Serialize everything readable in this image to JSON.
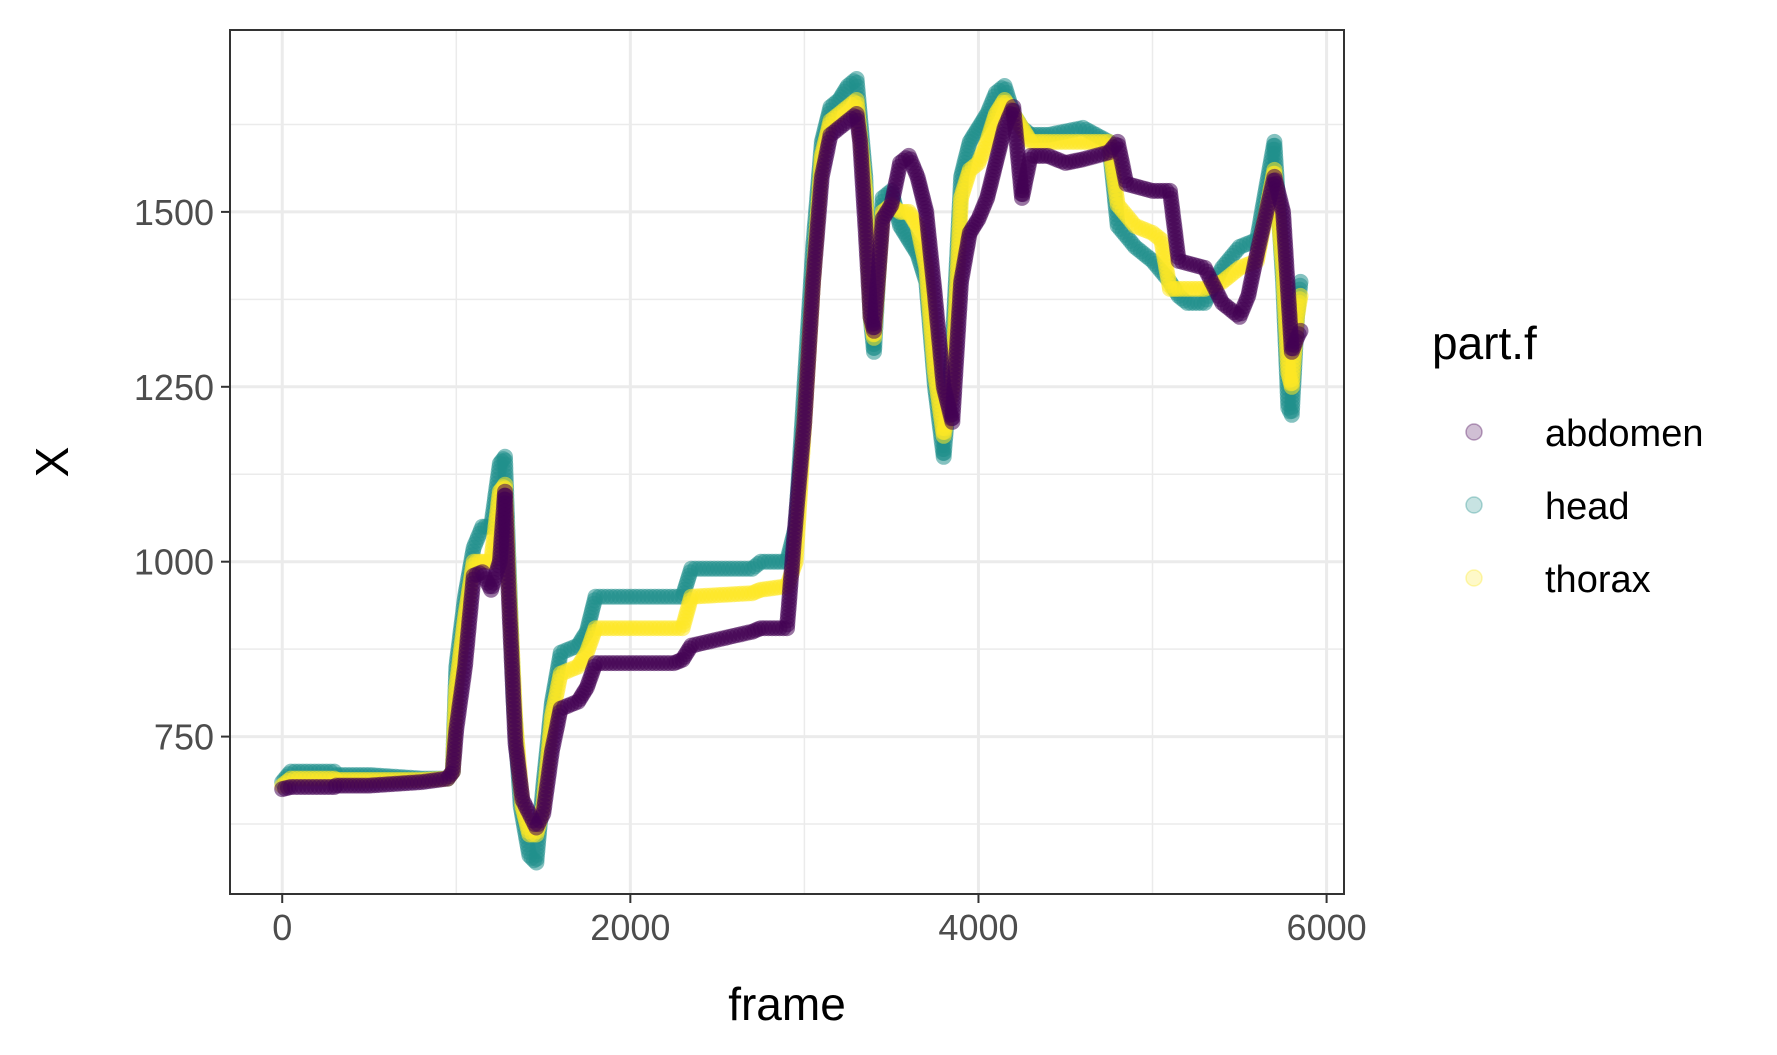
{
  "chart_data": {
    "type": "scatter",
    "xlabel": "frame",
    "ylabel": "X",
    "xlim": [
      -300,
      6100
    ],
    "ylim": [
      525,
      1760
    ],
    "x_ticks": [
      0,
      2000,
      4000,
      6000
    ],
    "x_tick_labels": [
      "0",
      "2000",
      "4000",
      "6000"
    ],
    "y_ticks": [
      750,
      1000,
      1250,
      1500
    ],
    "y_tick_labels": [
      "750",
      "1000",
      "1250",
      "1500"
    ],
    "grid": true,
    "legend": {
      "title": "part.f",
      "position": "right",
      "entries": [
        "abdomen",
        "head",
        "thorax"
      ]
    },
    "series": [
      {
        "name": "head",
        "color": "#21908C",
        "points": [
          [
            0,
            685
          ],
          [
            50,
            700
          ],
          [
            300,
            700
          ],
          [
            310,
            695
          ],
          [
            500,
            695
          ],
          [
            800,
            690
          ],
          [
            950,
            690
          ],
          [
            980,
            700
          ],
          [
            1000,
            850
          ],
          [
            1050,
            950
          ],
          [
            1100,
            1020
          ],
          [
            1150,
            1050
          ],
          [
            1200,
            1050
          ],
          [
            1250,
            1140
          ],
          [
            1280,
            1150
          ],
          [
            1300,
            1000
          ],
          [
            1330,
            800
          ],
          [
            1370,
            650
          ],
          [
            1420,
            580
          ],
          [
            1460,
            570
          ],
          [
            1500,
            680
          ],
          [
            1550,
            800
          ],
          [
            1600,
            870
          ],
          [
            1700,
            880
          ],
          [
            1750,
            900
          ],
          [
            1800,
            950
          ],
          [
            2300,
            950
          ],
          [
            2350,
            990
          ],
          [
            2700,
            990
          ],
          [
            2750,
            1000
          ],
          [
            2900,
            1000
          ],
          [
            2950,
            1050
          ],
          [
            3000,
            1250
          ],
          [
            3050,
            1450
          ],
          [
            3100,
            1600
          ],
          [
            3150,
            1650
          ],
          [
            3200,
            1660
          ],
          [
            3250,
            1680
          ],
          [
            3300,
            1690
          ],
          [
            3350,
            1550
          ],
          [
            3380,
            1350
          ],
          [
            3400,
            1300
          ],
          [
            3450,
            1520
          ],
          [
            3500,
            1530
          ],
          [
            3550,
            1480
          ],
          [
            3600,
            1460
          ],
          [
            3650,
            1440
          ],
          [
            3700,
            1400
          ],
          [
            3750,
            1250
          ],
          [
            3800,
            1150
          ],
          [
            3850,
            1300
          ],
          [
            3900,
            1550
          ],
          [
            3950,
            1600
          ],
          [
            4000,
            1620
          ],
          [
            4050,
            1640
          ],
          [
            4100,
            1670
          ],
          [
            4150,
            1680
          ],
          [
            4200,
            1640
          ],
          [
            4250,
            1620
          ],
          [
            4300,
            1610
          ],
          [
            4400,
            1610
          ],
          [
            4600,
            1620
          ],
          [
            4750,
            1600
          ],
          [
            4800,
            1480
          ],
          [
            4900,
            1450
          ],
          [
            5000,
            1430
          ],
          [
            5100,
            1400
          ],
          [
            5150,
            1380
          ],
          [
            5200,
            1370
          ],
          [
            5300,
            1370
          ],
          [
            5400,
            1420
          ],
          [
            5500,
            1450
          ],
          [
            5600,
            1460
          ],
          [
            5700,
            1600
          ],
          [
            5750,
            1400
          ],
          [
            5780,
            1220
          ],
          [
            5800,
            1210
          ],
          [
            5830,
            1350
          ],
          [
            5850,
            1400
          ]
        ]
      },
      {
        "name": "thorax",
        "color": "#FDE725",
        "points": [
          [
            0,
            680
          ],
          [
            50,
            690
          ],
          [
            300,
            690
          ],
          [
            310,
            688
          ],
          [
            500,
            688
          ],
          [
            800,
            688
          ],
          [
            950,
            690
          ],
          [
            980,
            700
          ],
          [
            1000,
            820
          ],
          [
            1050,
            920
          ],
          [
            1100,
            1000
          ],
          [
            1150,
            1000
          ],
          [
            1200,
            1000
          ],
          [
            1250,
            1100
          ],
          [
            1280,
            1110
          ],
          [
            1300,
            980
          ],
          [
            1340,
            770
          ],
          [
            1380,
            650
          ],
          [
            1420,
            610
          ],
          [
            1460,
            610
          ],
          [
            1500,
            650
          ],
          [
            1550,
            780
          ],
          [
            1600,
            840
          ],
          [
            1700,
            850
          ],
          [
            1750,
            870
          ],
          [
            1800,
            905
          ],
          [
            2300,
            905
          ],
          [
            2350,
            950
          ],
          [
            2700,
            955
          ],
          [
            2750,
            960
          ],
          [
            2900,
            965
          ],
          [
            2950,
            1000
          ],
          [
            3000,
            1200
          ],
          [
            3050,
            1400
          ],
          [
            3100,
            1580
          ],
          [
            3150,
            1630
          ],
          [
            3200,
            1640
          ],
          [
            3250,
            1650
          ],
          [
            3300,
            1660
          ],
          [
            3350,
            1530
          ],
          [
            3380,
            1350
          ],
          [
            3400,
            1320
          ],
          [
            3450,
            1500
          ],
          [
            3500,
            1510
          ],
          [
            3550,
            1500
          ],
          [
            3600,
            1500
          ],
          [
            3650,
            1480
          ],
          [
            3700,
            1420
          ],
          [
            3750,
            1270
          ],
          [
            3800,
            1180
          ],
          [
            3850,
            1250
          ],
          [
            3900,
            1520
          ],
          [
            3950,
            1560
          ],
          [
            4000,
            1570
          ],
          [
            4050,
            1600
          ],
          [
            4100,
            1640
          ],
          [
            4150,
            1660
          ],
          [
            4200,
            1640
          ],
          [
            4250,
            1620
          ],
          [
            4300,
            1600
          ],
          [
            4400,
            1600
          ],
          [
            4600,
            1600
          ],
          [
            4750,
            1600
          ],
          [
            4800,
            1510
          ],
          [
            4900,
            1480
          ],
          [
            5000,
            1470
          ],
          [
            5050,
            1460
          ],
          [
            5100,
            1390
          ],
          [
            5150,
            1390
          ],
          [
            5300,
            1390
          ],
          [
            5400,
            1400
          ],
          [
            5500,
            1420
          ],
          [
            5600,
            1430
          ],
          [
            5700,
            1560
          ],
          [
            5750,
            1420
          ],
          [
            5780,
            1270
          ],
          [
            5800,
            1250
          ],
          [
            5830,
            1350
          ],
          [
            5850,
            1380
          ]
        ]
      },
      {
        "name": "abdomen",
        "color": "#440154",
        "points": [
          [
            0,
            675
          ],
          [
            50,
            678
          ],
          [
            300,
            678
          ],
          [
            310,
            680
          ],
          [
            500,
            680
          ],
          [
            800,
            685
          ],
          [
            950,
            690
          ],
          [
            980,
            700
          ],
          [
            1000,
            760
          ],
          [
            1050,
            850
          ],
          [
            1100,
            980
          ],
          [
            1150,
            985
          ],
          [
            1200,
            960
          ],
          [
            1250,
            1000
          ],
          [
            1280,
            1100
          ],
          [
            1300,
            960
          ],
          [
            1340,
            740
          ],
          [
            1380,
            660
          ],
          [
            1420,
            640
          ],
          [
            1460,
            620
          ],
          [
            1500,
            640
          ],
          [
            1550,
            730
          ],
          [
            1600,
            790
          ],
          [
            1700,
            800
          ],
          [
            1750,
            820
          ],
          [
            1800,
            855
          ],
          [
            2250,
            855
          ],
          [
            2300,
            860
          ],
          [
            2350,
            880
          ],
          [
            2700,
            900
          ],
          [
            2750,
            905
          ],
          [
            2900,
            905
          ],
          [
            2950,
            1060
          ],
          [
            3000,
            1200
          ],
          [
            3050,
            1400
          ],
          [
            3100,
            1550
          ],
          [
            3150,
            1610
          ],
          [
            3200,
            1620
          ],
          [
            3250,
            1630
          ],
          [
            3300,
            1640
          ],
          [
            3320,
            1600
          ],
          [
            3350,
            1480
          ],
          [
            3380,
            1350
          ],
          [
            3400,
            1330
          ],
          [
            3450,
            1490
          ],
          [
            3500,
            1510
          ],
          [
            3550,
            1570
          ],
          [
            3600,
            1580
          ],
          [
            3650,
            1550
          ],
          [
            3700,
            1500
          ],
          [
            3750,
            1380
          ],
          [
            3800,
            1250
          ],
          [
            3850,
            1200
          ],
          [
            3900,
            1400
          ],
          [
            3950,
            1470
          ],
          [
            4000,
            1490
          ],
          [
            4050,
            1520
          ],
          [
            4100,
            1570
          ],
          [
            4150,
            1620
          ],
          [
            4200,
            1650
          ],
          [
            4250,
            1520
          ],
          [
            4300,
            1580
          ],
          [
            4400,
            1580
          ],
          [
            4500,
            1570
          ],
          [
            4600,
            1575
          ],
          [
            4750,
            1585
          ],
          [
            4800,
            1600
          ],
          [
            4850,
            1540
          ],
          [
            5000,
            1530
          ],
          [
            5100,
            1530
          ],
          [
            5150,
            1430
          ],
          [
            5300,
            1420
          ],
          [
            5400,
            1370
          ],
          [
            5450,
            1360
          ],
          [
            5500,
            1350
          ],
          [
            5550,
            1380
          ],
          [
            5600,
            1440
          ],
          [
            5700,
            1550
          ],
          [
            5750,
            1500
          ],
          [
            5780,
            1380
          ],
          [
            5800,
            1300
          ],
          [
            5830,
            1320
          ],
          [
            5850,
            1330
          ]
        ]
      }
    ]
  }
}
